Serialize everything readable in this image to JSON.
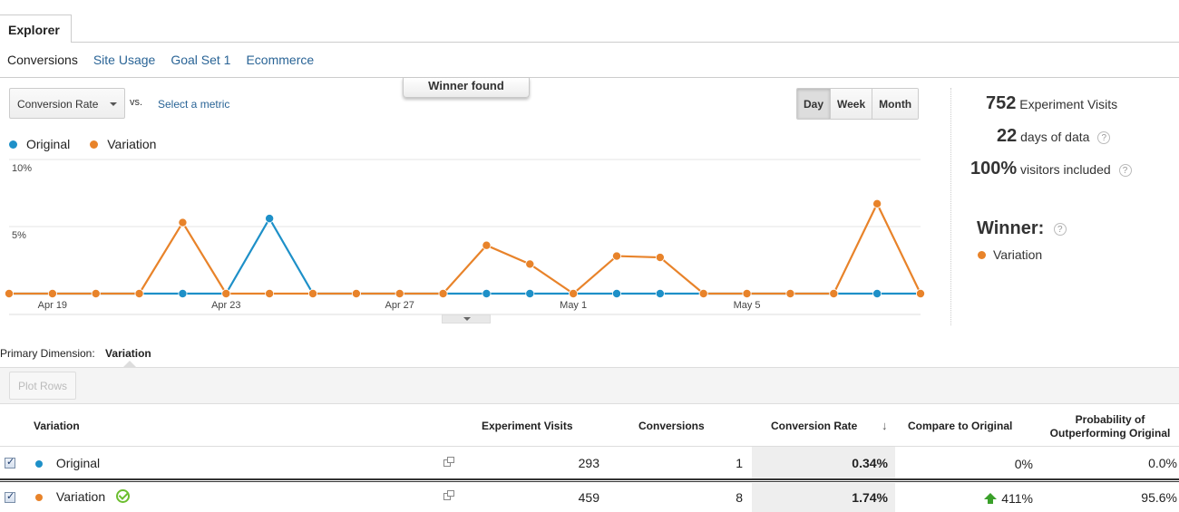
{
  "explorer_tab": "Explorer",
  "subtabs": [
    {
      "label": "Conversions",
      "active": true
    },
    {
      "label": "Site Usage",
      "active": false
    },
    {
      "label": "Goal Set 1",
      "active": false
    },
    {
      "label": "Ecommerce",
      "active": false
    }
  ],
  "controls": {
    "metric": "Conversion Rate",
    "vs": "vs.",
    "select_metric": "Select a metric",
    "winner_banner": "Winner found",
    "periods": [
      "Day",
      "Week",
      "Month"
    ],
    "selected_period": "Day"
  },
  "legend": {
    "original": "Original",
    "variation": "Variation"
  },
  "colors": {
    "original": "#1e90c8",
    "variation": "#e8832a",
    "link": "#2a6496"
  },
  "chart_data": {
    "type": "line",
    "x": [
      "Apr 18",
      "Apr 19",
      "Apr 20",
      "Apr 21",
      "Apr 22",
      "Apr 23",
      "Apr 24",
      "Apr 25",
      "Apr 26",
      "Apr 27",
      "Apr 28",
      "Apr 29",
      "Apr 30",
      "May 1",
      "May 2",
      "May 3",
      "May 4",
      "May 5",
      "May 6",
      "May 7",
      "May 8",
      "May 9"
    ],
    "x_tick_labels": [
      "Apr 19",
      "Apr 23",
      "Apr 27",
      "May 1",
      "May 5"
    ],
    "y_tick_labels": [
      "10%",
      "5%"
    ],
    "ylim": [
      0,
      10
    ],
    "series": [
      {
        "name": "Original",
        "values": [
          0,
          0,
          0,
          0,
          0,
          0,
          5.6,
          0,
          0,
          0,
          0,
          0,
          0,
          0,
          0,
          0,
          0,
          0,
          0,
          0,
          0,
          0
        ]
      },
      {
        "name": "Variation",
        "values": [
          0,
          0,
          0,
          0,
          5.3,
          0,
          0,
          0,
          0,
          0,
          0,
          3.6,
          2.2,
          0,
          2.8,
          2.7,
          0,
          0,
          0,
          0,
          6.7,
          0
        ]
      }
    ]
  },
  "stats": {
    "visits_value": "752",
    "visits_label": "Experiment Visits",
    "days_value": "22",
    "days_label": "days of data",
    "visitors_value": "100%",
    "visitors_label": "visitors included",
    "help": "?"
  },
  "winner": {
    "title": "Winner:",
    "name": "Variation"
  },
  "primary_dimension": {
    "label": "Primary Dimension:",
    "value": "Variation"
  },
  "plot_rows": "Plot Rows",
  "table": {
    "headers": {
      "variation": "Variation",
      "visits": "Experiment Visits",
      "conversions": "Conversions",
      "rate": "Conversion Rate",
      "compare": "Compare to Original",
      "prob_line1": "Probability of",
      "prob_line2": "Outperforming Original"
    },
    "rows": [
      {
        "name": "Original",
        "visits": "293",
        "conversions": "1",
        "rate": "0.34%",
        "compare": "0%",
        "probability": "0.0%"
      },
      {
        "name": "Variation",
        "visits": "459",
        "conversions": "8",
        "rate": "1.74%",
        "compare": "411%",
        "probability": "95.6%"
      }
    ]
  }
}
